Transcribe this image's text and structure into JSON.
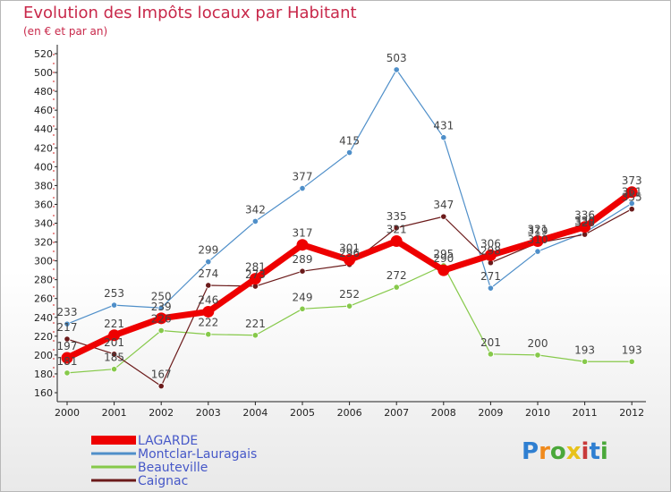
{
  "title": "Evolution des Impôts locaux par Habitant",
  "subtitle": "(en € et par an)",
  "logo": {
    "text": "Proxiti",
    "colors": [
      "#2f7fd1",
      "#f08a1c",
      "#4aa83a",
      "#e8c21a",
      "#c83a3a",
      "#2f7fd1",
      "#4aa83a"
    ]
  },
  "chart_data": {
    "type": "line",
    "title": "Evolution des Impôts locaux par Habitant",
    "subtitle": "(en € et par an)",
    "xlabel": "",
    "ylabel": "",
    "x": [
      "2000",
      "2001",
      "2002",
      "2003",
      "2004",
      "2005",
      "2006",
      "2007",
      "2008",
      "2009",
      "2010",
      "2011",
      "2012"
    ],
    "ylim": [
      160,
      520
    ],
    "yticks": [
      160,
      180,
      200,
      220,
      240,
      260,
      280,
      300,
      320,
      340,
      360,
      380,
      400,
      420,
      440,
      460,
      480,
      500,
      520
    ],
    "grid": false,
    "legend": "bottom-left",
    "series": [
      {
        "name": "Montclar-Lauragais",
        "color": "#4f8fc9",
        "values": [
          233,
          253,
          250,
          299,
          342,
          377,
          415,
          503,
          431,
          271,
          310,
          330,
          361
        ]
      },
      {
        "name": "Beauteville",
        "color": "#86c94a",
        "values": [
          181,
          185,
          226,
          222,
          221,
          249,
          252,
          272,
          295,
          201,
          200,
          193,
          193
        ]
      },
      {
        "name": "Caignac",
        "color": "#6b1a1a",
        "values": [
          217,
          201,
          167,
          274,
          273,
          289,
          296,
          335,
          347,
          298,
          319,
          328,
          355
        ]
      },
      {
        "name": "LAGARDE",
        "color": "#ee0000",
        "values": [
          197,
          221,
          239,
          246,
          281,
          317,
          301,
          321,
          290,
          306,
          321,
          336,
          373
        ]
      }
    ],
    "point_labels": [
      {
        "series": "Montclar-Lauragais",
        "labels": [
          "233",
          "253",
          "250",
          "299",
          "342",
          "377",
          "415",
          "503",
          "431",
          "271",
          "310",
          "330",
          "361"
        ]
      },
      {
        "series": "Beauteville",
        "labels": [
          "181",
          "185",
          "226",
          "222",
          "221",
          "249",
          "252",
          "272",
          "295",
          "201",
          "200",
          "193",
          "193"
        ]
      },
      {
        "series": "Caignac",
        "labels": [
          "217",
          "201",
          "167",
          "274",
          "273",
          "289",
          "296",
          "335",
          "347",
          "298",
          "319",
          "328",
          "355"
        ]
      },
      {
        "series": "LAGARDE",
        "labels": [
          "197",
          "221",
          "239",
          "246",
          "281",
          "317",
          "301",
          "321",
          "290",
          "306",
          "321",
          "336",
          "373"
        ]
      }
    ],
    "legend_order": [
      "LAGARDE",
      "Montclar-Lauragais",
      "Beauteville",
      "Caignac"
    ]
  }
}
